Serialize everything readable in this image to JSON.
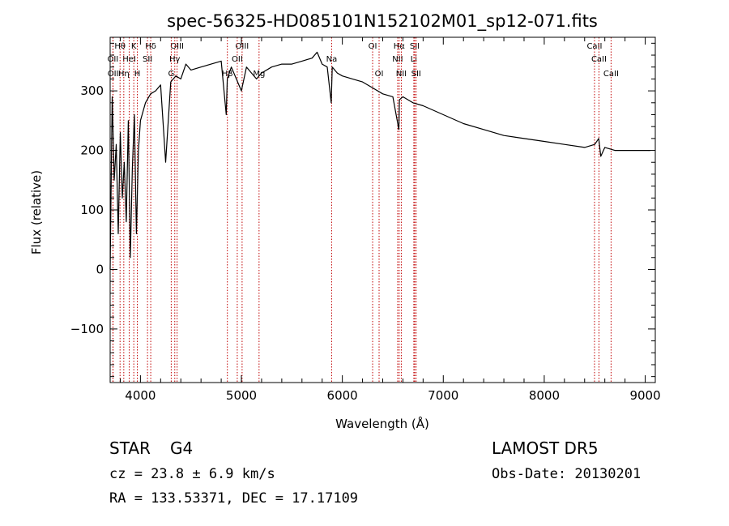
{
  "chart_data": {
    "type": "line",
    "title": "spec-56325-HD085101N152102M01_sp12-071.fits",
    "xlabel": "Wavelength (Å)",
    "ylabel": "Flux (relative)",
    "xlim": [
      3700,
      9100
    ],
    "ylim": [
      -190,
      390
    ],
    "xticks": [
      4000,
      5000,
      6000,
      7000,
      8000,
      9000
    ],
    "xtick_labels": [
      "4000",
      "5000",
      "6000",
      "7000",
      "8000",
      "9000"
    ],
    "yticks": [
      -100,
      0,
      100,
      200,
      300
    ],
    "ytick_labels": [
      "−100",
      "0",
      "100",
      "200",
      "300"
    ],
    "series": [
      {
        "x": [
          3700,
          3720,
          3740,
          3760,
          3780,
          3800,
          3820,
          3840,
          3860,
          3880,
          3900,
          3920,
          3940,
          3960,
          3980,
          4000,
          4050,
          4100,
          4150,
          4200,
          4250,
          4300,
          4350,
          4400,
          4450,
          4500,
          4600,
          4700,
          4800,
          4850,
          4860,
          4900,
          4950,
          5000,
          5050,
          5100,
          5150,
          5200,
          5300,
          5400,
          5500,
          5600,
          5700,
          5750,
          5800,
          5850,
          5890,
          5900,
          5950,
          6000,
          6100,
          6200,
          6300,
          6400,
          6500,
          6560,
          6565,
          6600,
          6700,
          6800,
          7000,
          7200,
          7400,
          7600,
          7800,
          8000,
          8200,
          8400,
          8500,
          8540,
          8560,
          8600,
          8700,
          8800,
          8900,
          9000,
          9050
        ],
        "y": [
          0,
          290,
          150,
          210,
          60,
          230,
          120,
          180,
          80,
          250,
          20,
          170,
          260,
          60,
          200,
          250,
          280,
          295,
          300,
          310,
          180,
          315,
          325,
          320,
          345,
          335,
          340,
          345,
          350,
          260,
          320,
          340,
          320,
          300,
          340,
          330,
          320,
          330,
          340,
          345,
          345,
          350,
          355,
          365,
          345,
          340,
          280,
          340,
          330,
          325,
          320,
          315,
          305,
          295,
          290,
          235,
          285,
          290,
          280,
          275,
          260,
          245,
          235,
          225,
          220,
          215,
          210,
          205,
          210,
          220,
          190,
          205,
          200,
          200,
          200,
          200,
          200
        ]
      }
    ],
    "spectral_lines": [
      {
        "label": "Hθ",
        "x": 3798,
        "row": 0
      },
      {
        "label": "K",
        "x": 3934,
        "row": 0
      },
      {
        "label": "Hδ",
        "x": 4102,
        "row": 0
      },
      {
        "label": "OII",
        "x": 3727,
        "row": 1
      },
      {
        "label": "HeI",
        "x": 3889,
        "row": 1
      },
      {
        "label": "SII",
        "x": 4070,
        "row": 1
      },
      {
        "label": "OII",
        "x": 3729,
        "row": 2
      },
      {
        "label": "Hη",
        "x": 3835,
        "row": 2
      },
      {
        "label": "H",
        "x": 3969,
        "row": 2
      },
      {
        "label": "OIII",
        "x": 4363,
        "row": 0
      },
      {
        "label": "Hγ",
        "x": 4340,
        "row": 1
      },
      {
        "label": "G",
        "x": 4305,
        "row": 2
      },
      {
        "label": "OIII",
        "x": 5007,
        "row": 0
      },
      {
        "label": "OII",
        "x": 4959,
        "row": 1
      },
      {
        "label": "Hβ",
        "x": 4861,
        "row": 2
      },
      {
        "label": "Mg",
        "x": 5175,
        "row": 2
      },
      {
        "label": "Na",
        "x": 5894,
        "row": 1
      },
      {
        "label": "OI",
        "x": 6300,
        "row": 0
      },
      {
        "label": "OI",
        "x": 6364,
        "row": 2
      },
      {
        "label": "Hα",
        "x": 6563,
        "row": 0
      },
      {
        "label": "SII",
        "x": 6717,
        "row": 0
      },
      {
        "label": "NII",
        "x": 6548,
        "row": 1
      },
      {
        "label": "Li",
        "x": 6708,
        "row": 1
      },
      {
        "label": "NII",
        "x": 6584,
        "row": 2
      },
      {
        "label": "SII",
        "x": 6731,
        "row": 2
      },
      {
        "label": "CaII",
        "x": 8498,
        "row": 0
      },
      {
        "label": "CaII",
        "x": 8542,
        "row": 1
      },
      {
        "label": "CaII",
        "x": 8662,
        "row": 2
      }
    ]
  },
  "info": {
    "class_label": "STAR",
    "subclass": "G4",
    "survey": "LAMOST DR5",
    "cz": "cz = 23.8 ± 6.9 km/s",
    "obs_date": "Obs-Date: 20130201",
    "radec": "RA = 133.53371, DEC =  17.17109"
  }
}
